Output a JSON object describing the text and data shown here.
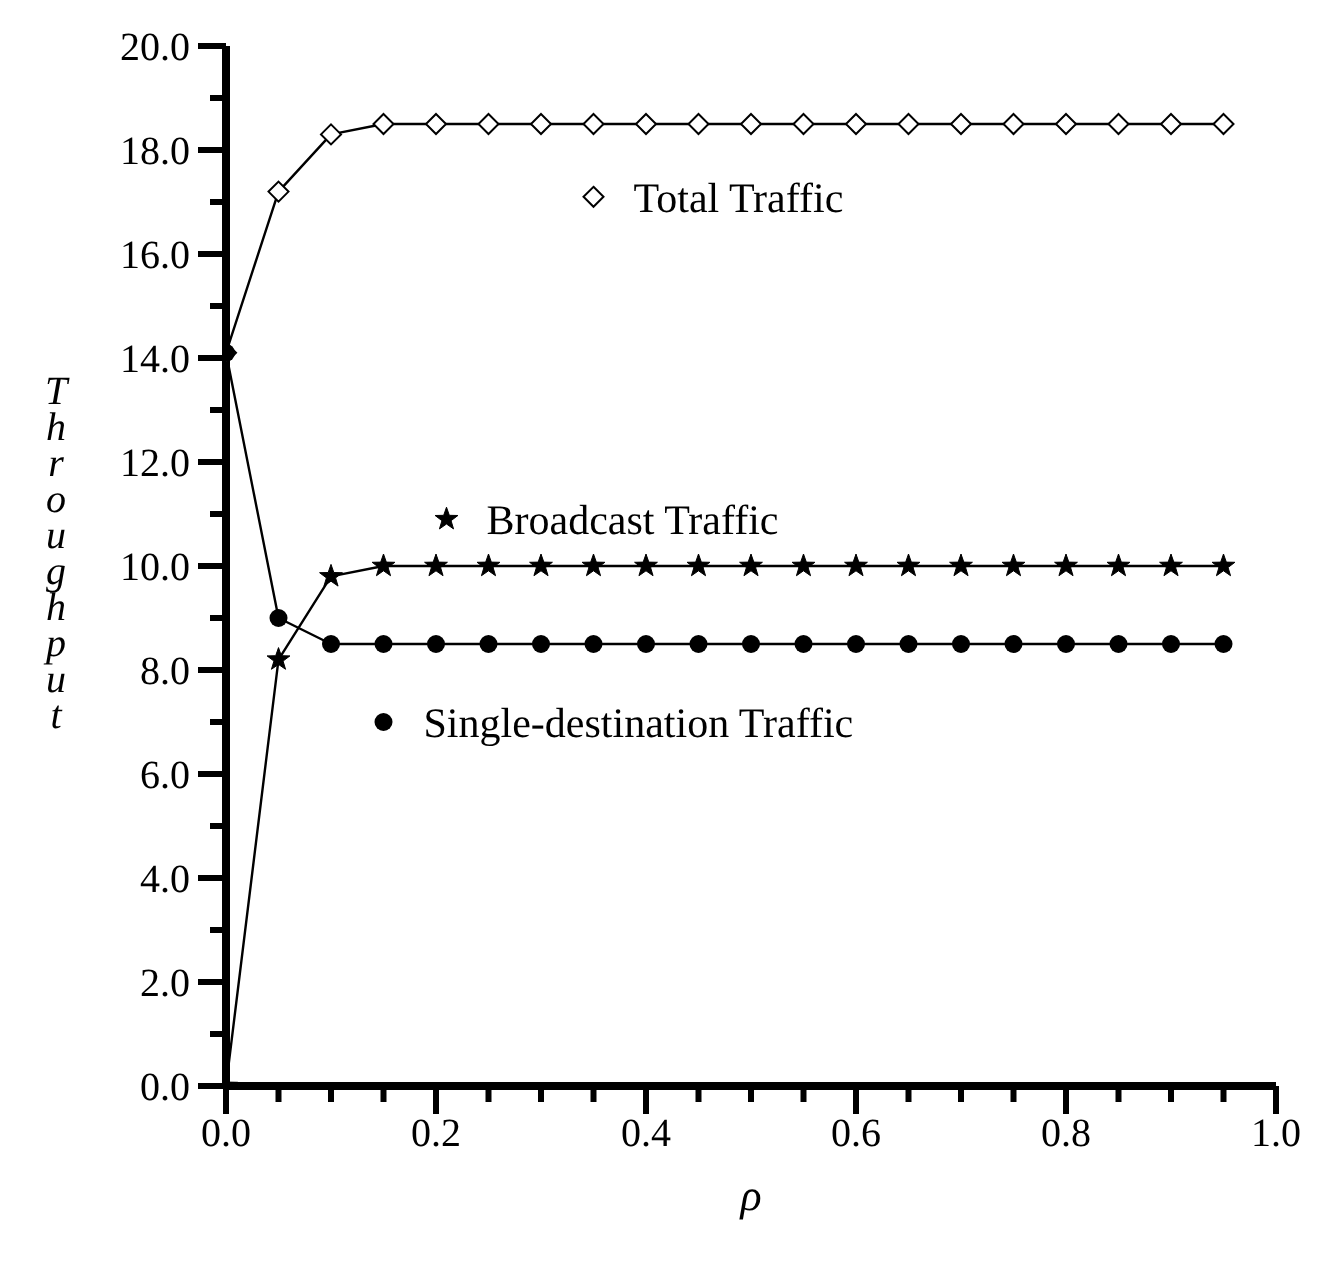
{
  "chart_data": {
    "type": "line",
    "xlabel": "ρ",
    "ylabel": "Throughput",
    "line_style": "solid",
    "legend": "top left",
    "x": [
      0,
      0.05,
      0.1,
      0.15,
      0.2,
      0.25,
      0.3,
      0.35,
      0.4,
      0.45,
      0.5,
      0.55,
      0.6,
      0.65,
      0.7,
      0.75,
      0.8,
      0.85,
      0.9,
      0.95
    ],
    "series": [
      {
        "name": "Total Traffic",
        "color": "#000000",
        "marker": "diamond",
        "values": [
          14.1,
          17.2,
          18.3,
          18.5,
          18.5,
          18.5,
          18.5,
          18.5,
          18.5,
          18.5,
          18.5,
          18.5,
          18.5,
          18.5,
          18.5,
          18.5,
          18.5,
          18.5,
          18.5,
          18.5
        ]
      },
      {
        "name": "Broadcast Traffic",
        "color": "#000000",
        "marker": "star",
        "values": [
          0,
          8.2,
          9.8,
          10,
          10,
          10,
          10,
          10,
          10,
          10,
          10,
          10,
          10,
          10,
          10,
          10,
          10,
          10,
          10,
          10
        ]
      },
      {
        "name": "Single-destination Traffic",
        "color": "#000000",
        "marker": "circle",
        "values": [
          14.1,
          9,
          8.5,
          8.5,
          8.5,
          8.5,
          8.5,
          8.5,
          8.5,
          8.5,
          8.5,
          8.5,
          8.5,
          8.5,
          8.5,
          8.5,
          8.5,
          8.5,
          8.5,
          8.5
        ]
      }
    ],
    "xlim": [
      0,
      1
    ],
    "xticks": [
      {
        "value": 0,
        "label": "0.0"
      },
      {
        "value": 0.05,
        "label": null
      },
      {
        "value": 0.1,
        "label": null
      },
      {
        "value": 0.15,
        "label": null
      },
      {
        "value": 0.2,
        "label": "0.2"
      },
      {
        "value": 0.25,
        "label": null
      },
      {
        "value": 0.3,
        "label": null
      },
      {
        "value": 0.35,
        "label": null
      },
      {
        "value": 0.4,
        "label": "0.4"
      },
      {
        "value": 0.45,
        "label": null
      },
      {
        "value": 0.5,
        "label": null
      },
      {
        "value": 0.55,
        "label": null
      },
      {
        "value": 0.6,
        "label": "0.6"
      },
      {
        "value": 0.65,
        "label": null
      },
      {
        "value": 0.7,
        "label": null
      },
      {
        "value": 0.75,
        "label": null
      },
      {
        "value": 0.8,
        "label": "0.8"
      },
      {
        "value": 0.85,
        "label": null
      },
      {
        "value": 0.9,
        "label": null
      },
      {
        "value": 0.95,
        "label": null
      },
      {
        "value": 1,
        "label": "1.0"
      }
    ],
    "ylim": [
      0,
      20
    ],
    "yticks": [
      {
        "value": 0,
        "label": "0.0"
      },
      {
        "value": 1,
        "label": null
      },
      {
        "value": 2,
        "label": "2.0"
      },
      {
        "value": 3,
        "label": null
      },
      {
        "value": 4,
        "label": "4.0"
      },
      {
        "value": 5,
        "label": null
      },
      {
        "value": 6,
        "label": "6.0"
      },
      {
        "value": 7,
        "label": null
      },
      {
        "value": 8,
        "label": "8.0"
      },
      {
        "value": 9,
        "label": null
      },
      {
        "value": 10,
        "label": "10.0"
      },
      {
        "value": 11,
        "label": null
      },
      {
        "value": 12,
        "label": "12.0"
      },
      {
        "value": 13,
        "label": null
      },
      {
        "value": 14,
        "label": "14.0"
      },
      {
        "value": 15,
        "label": null
      },
      {
        "value": 16,
        "label": "16.0"
      },
      {
        "value": 17,
        "label": null
      },
      {
        "value": 18,
        "label": "18.0"
      },
      {
        "value": 19,
        "label": null
      },
      {
        "value": 20,
        "label": "20.0"
      }
    ]
  }
}
